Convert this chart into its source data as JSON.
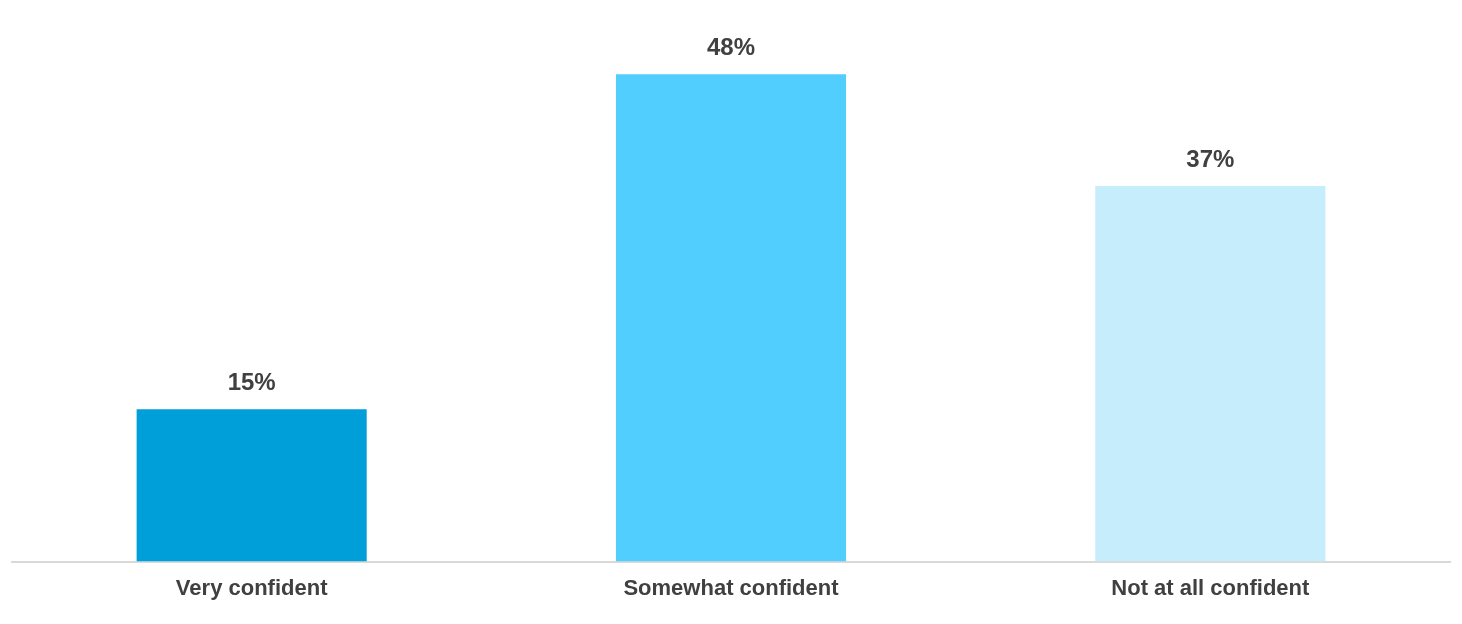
{
  "chart_data": {
    "type": "bar",
    "categories": [
      "Very confident",
      "Somewhat confident",
      "Not at all confident"
    ],
    "values": [
      15,
      48,
      37
    ],
    "colors": [
      "#009fd9",
      "#52cefe",
      "#c5edfc"
    ],
    "data_labels": true,
    "value_labels": [
      "15%",
      "48%",
      "37%"
    ],
    "grid": false,
    "legend": false
  }
}
